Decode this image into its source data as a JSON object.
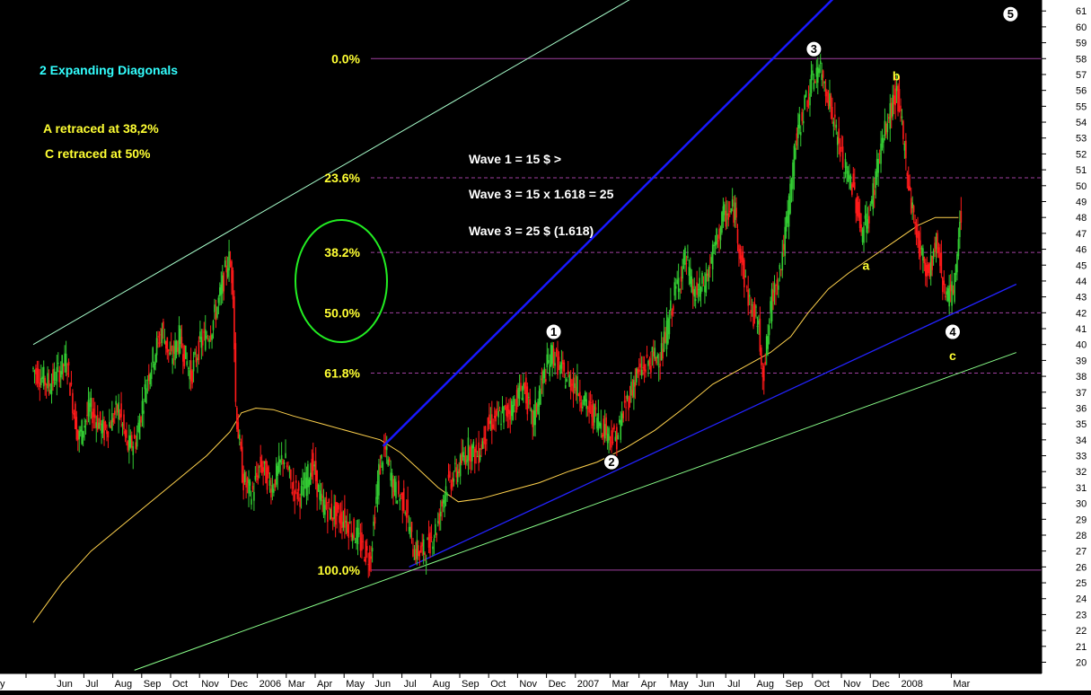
{
  "chart_data": {
    "type": "candlestick",
    "y_axis": {
      "ylim": [
        19.5,
        61.5
      ],
      "tick_labels": [
        "20",
        "21",
        "22",
        "23",
        "24",
        "25",
        "26",
        "27",
        "28",
        "29",
        "30",
        "31",
        "32",
        "33",
        "34",
        "35",
        "36",
        "37",
        "38",
        "39",
        "40",
        "41",
        "42",
        "43",
        "44",
        "45",
        "46",
        "47",
        "48",
        "49",
        "50",
        "51",
        "52",
        "53",
        "54",
        "55",
        "56",
        "57",
        "58",
        "59",
        "60",
        "61"
      ],
      "side": "right"
    },
    "x_axis": {
      "tick_labels": [
        {
          "t": 0.0,
          "label": "y"
        },
        {
          "t": 1.0,
          "label": "Jun"
        },
        {
          "t": 2.0,
          "label": "Jul"
        },
        {
          "t": 3.0,
          "label": "Aug"
        },
        {
          "t": 4.0,
          "label": "Sep"
        },
        {
          "t": 5.0,
          "label": "Oct"
        },
        {
          "t": 6.0,
          "label": "Nov"
        },
        {
          "t": 7.0,
          "label": "Dec"
        },
        {
          "t": 8.0,
          "label": "2006"
        },
        {
          "t": 9.0,
          "label": "Mar"
        },
        {
          "t": 10.0,
          "label": "Apr"
        },
        {
          "t": 11.0,
          "label": "May"
        },
        {
          "t": 12.0,
          "label": "Jun"
        },
        {
          "t": 13.0,
          "label": "Jul"
        },
        {
          "t": 14.0,
          "label": "Aug"
        },
        {
          "t": 15.0,
          "label": "Sep"
        },
        {
          "t": 16.0,
          "label": "Oct"
        },
        {
          "t": 17.0,
          "label": "Nov"
        },
        {
          "t": 18.0,
          "label": "Dec"
        },
        {
          "t": 19.0,
          "label": "2007"
        },
        {
          "t": 20.2,
          "label": "Mar"
        },
        {
          "t": 21.2,
          "label": "Apr"
        },
        {
          "t": 22.2,
          "label": "May"
        },
        {
          "t": 23.2,
          "label": "Jun"
        },
        {
          "t": 24.2,
          "label": "Jul"
        },
        {
          "t": 25.2,
          "label": "Aug"
        },
        {
          "t": 26.2,
          "label": "Sep"
        },
        {
          "t": 27.2,
          "label": "Oct"
        },
        {
          "t": 28.2,
          "label": "Nov"
        },
        {
          "t": 29.2,
          "label": "Dec"
        },
        {
          "t": 30.2,
          "label": "2008"
        },
        {
          "t": 32.0,
          "label": "Mar"
        }
      ]
    },
    "price_path": [
      [
        0.0,
        38.5
      ],
      [
        0.6,
        37.5
      ],
      [
        1.2,
        39.0
      ],
      [
        1.6,
        34.0
      ],
      [
        2.0,
        36.0
      ],
      [
        2.5,
        34.5
      ],
      [
        3.0,
        36.0
      ],
      [
        3.3,
        33.5
      ],
      [
        3.6,
        34.0
      ],
      [
        4.0,
        38.0
      ],
      [
        4.5,
        41.0
      ],
      [
        4.8,
        39.0
      ],
      [
        5.1,
        40.5
      ],
      [
        5.5,
        38.0
      ],
      [
        5.8,
        40.0
      ],
      [
        6.2,
        41.0
      ],
      [
        6.5,
        43.0
      ],
      [
        6.8,
        45.5
      ],
      [
        6.95,
        44.0
      ],
      [
        7.05,
        36.0
      ],
      [
        7.3,
        31.5
      ],
      [
        7.6,
        30.5
      ],
      [
        7.9,
        32.5
      ],
      [
        8.3,
        31.0
      ],
      [
        8.7,
        33.0
      ],
      [
        9.0,
        31.0
      ],
      [
        9.3,
        30.5
      ],
      [
        9.7,
        32.5
      ],
      [
        10.0,
        30.0
      ],
      [
        10.3,
        29.5
      ],
      [
        10.8,
        29.0
      ],
      [
        11.2,
        28.0
      ],
      [
        11.5,
        27.0
      ],
      [
        11.7,
        26.5
      ],
      [
        12.0,
        32.0
      ],
      [
        12.2,
        33.5
      ],
      [
        12.5,
        31.0
      ],
      [
        12.9,
        30.0
      ],
      [
        13.2,
        27.0
      ],
      [
        13.6,
        27.0
      ],
      [
        14.0,
        28.5
      ],
      [
        14.3,
        31.0
      ],
      [
        14.7,
        32.0
      ],
      [
        15.1,
        33.5
      ],
      [
        15.4,
        33.0
      ],
      [
        15.8,
        35.0
      ],
      [
        16.2,
        35.5
      ],
      [
        16.6,
        36.0
      ],
      [
        17.0,
        37.5
      ],
      [
        17.3,
        35.0
      ],
      [
        17.7,
        38.0
      ],
      [
        18.0,
        39.5
      ],
      [
        18.4,
        38.0
      ],
      [
        18.8,
        37.5
      ],
      [
        19.2,
        36.0
      ],
      [
        19.5,
        35.5
      ],
      [
        19.9,
        34.5
      ],
      [
        20.2,
        34.0
      ],
      [
        20.5,
        36.0
      ],
      [
        20.9,
        38.0
      ],
      [
        21.4,
        39.0
      ],
      [
        21.8,
        39.5
      ],
      [
        22.2,
        43.0
      ],
      [
        22.6,
        45.5
      ],
      [
        22.9,
        43.0
      ],
      [
        23.3,
        44.0
      ],
      [
        23.6,
        46.0
      ],
      [
        23.9,
        48.0
      ],
      [
        24.3,
        48.5
      ],
      [
        24.6,
        44.5
      ],
      [
        24.9,
        42.0
      ],
      [
        25.1,
        41.5
      ],
      [
        25.3,
        38.0
      ],
      [
        25.6,
        43.0
      ],
      [
        25.9,
        45.0
      ],
      [
        26.1,
        47.5
      ],
      [
        26.4,
        52.5
      ],
      [
        26.7,
        55.0
      ],
      [
        27.0,
        56.5
      ],
      [
        27.2,
        57.5
      ],
      [
        27.5,
        56.0
      ],
      [
        27.8,
        53.5
      ],
      [
        28.1,
        51.0
      ],
      [
        28.4,
        50.0
      ],
      [
        28.7,
        47.0
      ],
      [
        29.0,
        48.5
      ],
      [
        29.3,
        52.0
      ],
      [
        29.6,
        54.0
      ],
      [
        29.9,
        56.0
      ],
      [
        30.1,
        53.5
      ],
      [
        30.4,
        49.0
      ],
      [
        30.7,
        46.0
      ],
      [
        31.0,
        44.5
      ],
      [
        31.3,
        46.5
      ],
      [
        31.5,
        44.0
      ],
      [
        31.7,
        43.0
      ],
      [
        31.9,
        43.5
      ],
      [
        32.0,
        46.0
      ],
      [
        32.1,
        48.0
      ]
    ],
    "moving_average": [
      [
        0.0,
        22.5
      ],
      [
        1.0,
        25.0
      ],
      [
        2.0,
        27.0
      ],
      [
        3.0,
        28.5
      ],
      [
        4.0,
        30.0
      ],
      [
        5.0,
        31.5
      ],
      [
        6.0,
        33.0
      ],
      [
        6.8,
        34.5
      ],
      [
        7.2,
        35.7
      ],
      [
        7.7,
        36.0
      ],
      [
        8.3,
        35.9
      ],
      [
        9.0,
        35.5
      ],
      [
        10.0,
        35.0
      ],
      [
        11.0,
        34.5
      ],
      [
        12.0,
        34.0
      ],
      [
        12.7,
        33.2
      ],
      [
        13.3,
        32.2
      ],
      [
        14.0,
        31.0
      ],
      [
        14.7,
        30.1
      ],
      [
        15.5,
        30.3
      ],
      [
        16.5,
        30.8
      ],
      [
        17.5,
        31.3
      ],
      [
        18.5,
        32.0
      ],
      [
        19.5,
        32.6
      ],
      [
        20.5,
        33.5
      ],
      [
        21.5,
        34.6
      ],
      [
        22.5,
        36.0
      ],
      [
        23.5,
        37.5
      ],
      [
        24.5,
        38.5
      ],
      [
        25.5,
        39.5
      ],
      [
        26.2,
        40.5
      ],
      [
        26.8,
        42.0
      ],
      [
        27.5,
        43.5
      ],
      [
        28.2,
        44.5
      ],
      [
        29.0,
        45.5
      ],
      [
        29.8,
        46.5
      ],
      [
        30.6,
        47.5
      ],
      [
        31.2,
        48.0
      ],
      [
        31.5,
        48.0
      ],
      [
        32.0,
        48.0
      ]
    ],
    "channel_lines": [
      {
        "name": "",
        "from": [
          0.0,
          40.0
        ],
        "to": [
          22.8,
          64.0
        ]
      },
      {
        "name": "",
        "from": [
          3.5,
          19.5
        ],
        "to": [
          34.0,
          39.5
        ]
      },
      {
        "name": "",
        "from": [
          13.0,
          26.0
        ],
        "to": [
          34.0,
          43.8
        ]
      }
    ],
    "impulse_line": {
      "from": [
        12.1,
        33.6
      ],
      "to": [
        30.0,
        66.0
      ]
    },
    "fibonacci": {
      "levels": [
        {
          "label": "0.0%",
          "value": 58.0
        },
        {
          "label": "23.6%",
          "value": 50.5
        },
        {
          "label": "38.2%",
          "value": 45.8
        },
        {
          "label": "50.0%",
          "value": 42.0
        },
        {
          "label": "61.8%",
          "value": 38.2
        },
        {
          "label": "100.0%",
          "value": 25.8
        }
      ]
    },
    "wave_labels": [
      {
        "label": "1",
        "t": 18.0,
        "y": 40.8
      },
      {
        "label": "2",
        "t": 20.0,
        "y": 32.6
      },
      {
        "label": "3",
        "t": 27.0,
        "y": 58.6
      },
      {
        "label": "4",
        "t": 31.8,
        "y": 40.8
      },
      {
        "label": "5",
        "t": 33.8,
        "y": 60.8
      }
    ],
    "letter_labels": [
      {
        "label": "a",
        "t": 28.8,
        "y": 45.0
      },
      {
        "label": "b",
        "t": 29.85,
        "y": 56.9
      },
      {
        "label": "c",
        "t": 31.8,
        "y": 39.3
      }
    ],
    "annotations": {
      "title": "2 Expanding Diagonals",
      "line_a": "A retraced at 38,2%",
      "line_c": "C retraced at 50%",
      "wave_note_1": "Wave 1 = 15 $ >",
      "wave_note_2": "Wave 3 = 15 x 1.618 = 25",
      "wave_note_3": "Wave 3 = 25 $ (1.618)"
    },
    "colors": {
      "background": "#000000",
      "up_candle": "#33cc33",
      "down_candle": "#ff1a1a",
      "fib_line": "#a040a0",
      "moving_average": "#ffd24d",
      "upper_channel": "#a8ffcc",
      "lower_channel": "#8aff8a",
      "wave_channel": "#2323ff",
      "impulse_line": "#1818ff",
      "ellipse": "#22ee22",
      "axis_panel": "#ffffff"
    }
  }
}
